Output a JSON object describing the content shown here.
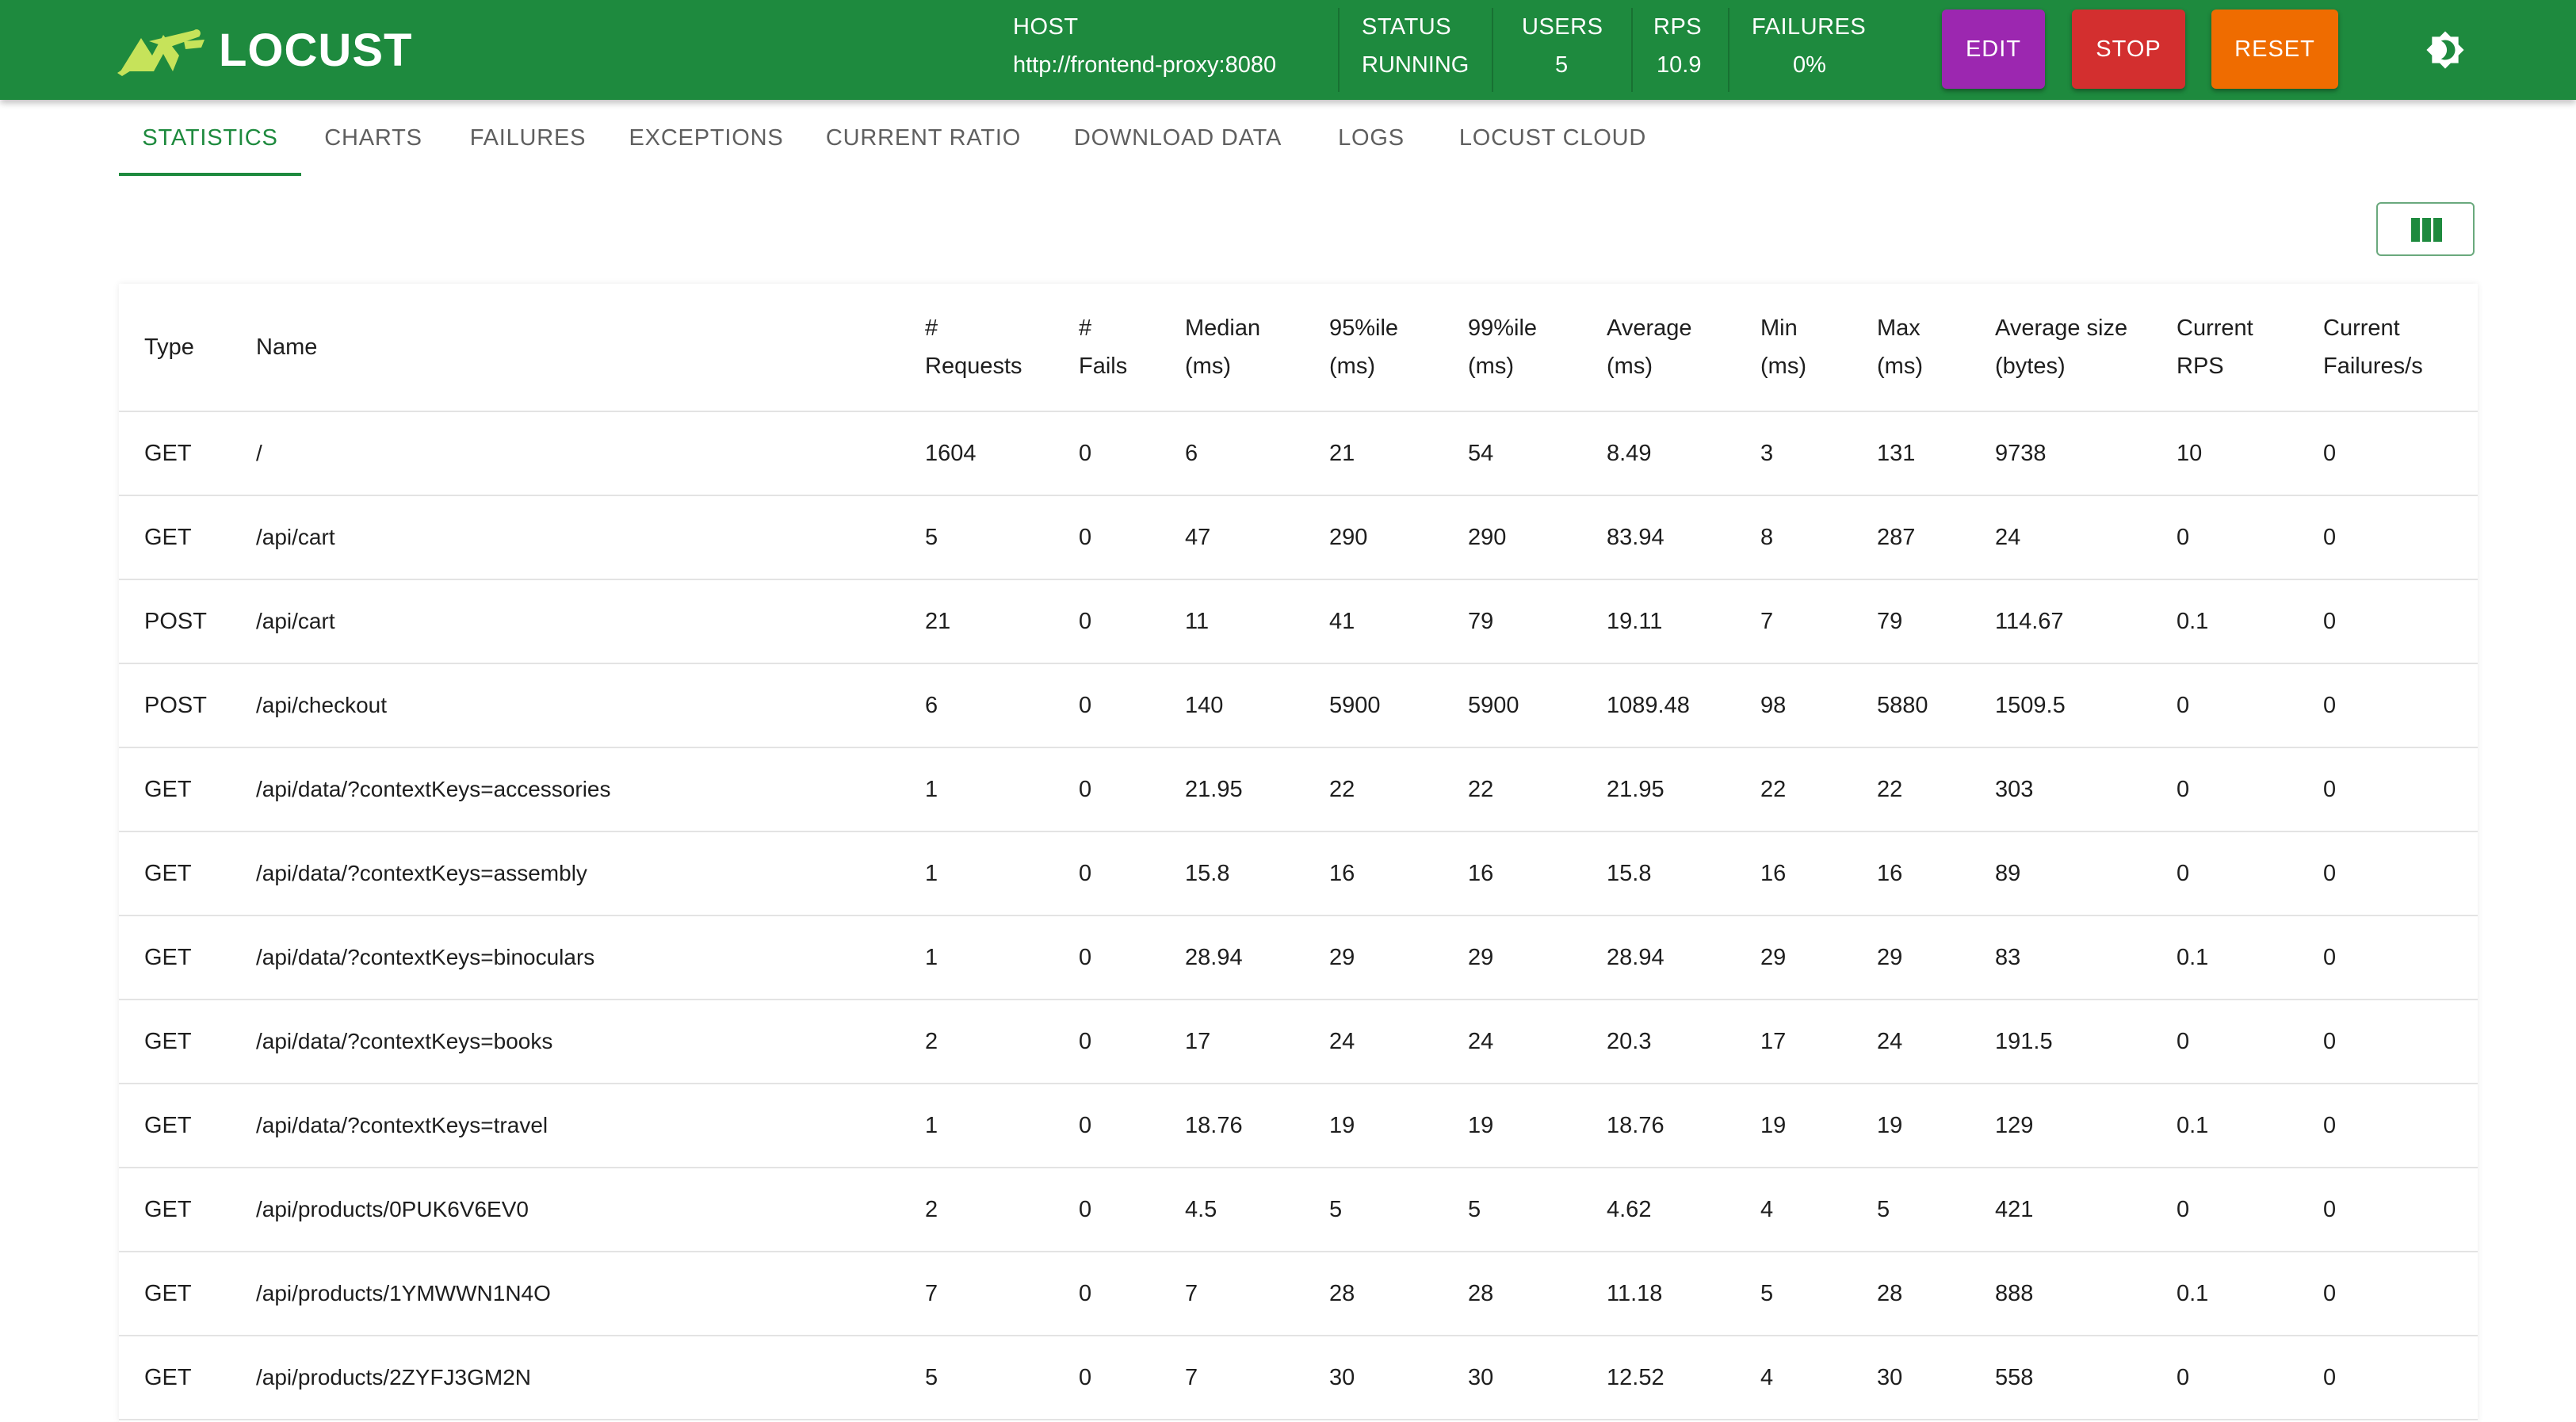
{
  "app": {
    "name": "LOCUST",
    "logo_icon": "locust-logo-icon"
  },
  "header": {
    "host_label": "HOST",
    "host_value": "http://frontend-proxy:8080",
    "status_label": "STATUS",
    "status_value": "RUNNING",
    "users_label": "USERS",
    "users_value": "5",
    "rps_label": "RPS",
    "rps_value": "10.9",
    "failures_label": "FAILURES",
    "failures_value": "0%",
    "edit_label": "EDIT",
    "stop_label": "STOP",
    "reset_label": "RESET",
    "theme_icon": "brightness-icon",
    "colors": {
      "bar": "#1e8a3e",
      "edit": "#9c27b0",
      "stop": "#d32f2f",
      "reset": "#ef6c00"
    }
  },
  "tabs": [
    {
      "label": "STATISTICS",
      "active": true
    },
    {
      "label": "CHARTS",
      "active": false
    },
    {
      "label": "FAILURES",
      "active": false
    },
    {
      "label": "EXCEPTIONS",
      "active": false
    },
    {
      "label": "CURRENT RATIO",
      "active": false
    },
    {
      "label": "DOWNLOAD DATA",
      "active": false
    },
    {
      "label": "LOGS",
      "active": false
    },
    {
      "label": "LOCUST CLOUD",
      "active": false
    }
  ],
  "toolbar": {
    "column_toggle_icon": "view-columns-icon"
  },
  "table": {
    "headers": [
      [
        "Type"
      ],
      [
        "Name"
      ],
      [
        "#",
        "Requests"
      ],
      [
        "#",
        "Fails"
      ],
      [
        "Median",
        "(ms)"
      ],
      [
        "95%ile",
        "(ms)"
      ],
      [
        "99%ile",
        "(ms)"
      ],
      [
        "Average",
        "(ms)"
      ],
      [
        "Min",
        "(ms)"
      ],
      [
        "Max",
        "(ms)"
      ],
      [
        "Average size",
        "(bytes)"
      ],
      [
        "Current",
        "RPS"
      ],
      [
        "Current",
        "Failures/s"
      ]
    ],
    "rows": [
      [
        "GET",
        "/",
        "1604",
        "0",
        "6",
        "21",
        "54",
        "8.49",
        "3",
        "131",
        "9738",
        "10",
        "0"
      ],
      [
        "GET",
        "/api/cart",
        "5",
        "0",
        "47",
        "290",
        "290",
        "83.94",
        "8",
        "287",
        "24",
        "0",
        "0"
      ],
      [
        "POST",
        "/api/cart",
        "21",
        "0",
        "11",
        "41",
        "79",
        "19.11",
        "7",
        "79",
        "114.67",
        "0.1",
        "0"
      ],
      [
        "POST",
        "/api/checkout",
        "6",
        "0",
        "140",
        "5900",
        "5900",
        "1089.48",
        "98",
        "5880",
        "1509.5",
        "0",
        "0"
      ],
      [
        "GET",
        "/api/data/?contextKeys=accessories",
        "1",
        "0",
        "21.95",
        "22",
        "22",
        "21.95",
        "22",
        "22",
        "303",
        "0",
        "0"
      ],
      [
        "GET",
        "/api/data/?contextKeys=assembly",
        "1",
        "0",
        "15.8",
        "16",
        "16",
        "15.8",
        "16",
        "16",
        "89",
        "0",
        "0"
      ],
      [
        "GET",
        "/api/data/?contextKeys=binoculars",
        "1",
        "0",
        "28.94",
        "29",
        "29",
        "28.94",
        "29",
        "29",
        "83",
        "0.1",
        "0"
      ],
      [
        "GET",
        "/api/data/?contextKeys=books",
        "2",
        "0",
        "17",
        "24",
        "24",
        "20.3",
        "17",
        "24",
        "191.5",
        "0",
        "0"
      ],
      [
        "GET",
        "/api/data/?contextKeys=travel",
        "1",
        "0",
        "18.76",
        "19",
        "19",
        "18.76",
        "19",
        "19",
        "129",
        "0.1",
        "0"
      ],
      [
        "GET",
        "/api/products/0PUK6V6EV0",
        "2",
        "0",
        "4.5",
        "5",
        "5",
        "4.62",
        "4",
        "5",
        "421",
        "0",
        "0"
      ],
      [
        "GET",
        "/api/products/1YMWWN1N4O",
        "7",
        "0",
        "7",
        "28",
        "28",
        "11.18",
        "5",
        "28",
        "888",
        "0.1",
        "0"
      ],
      [
        "GET",
        "/api/products/2ZYFJ3GM2N",
        "5",
        "0",
        "7",
        "30",
        "30",
        "12.52",
        "4",
        "30",
        "558",
        "0",
        "0"
      ]
    ]
  }
}
